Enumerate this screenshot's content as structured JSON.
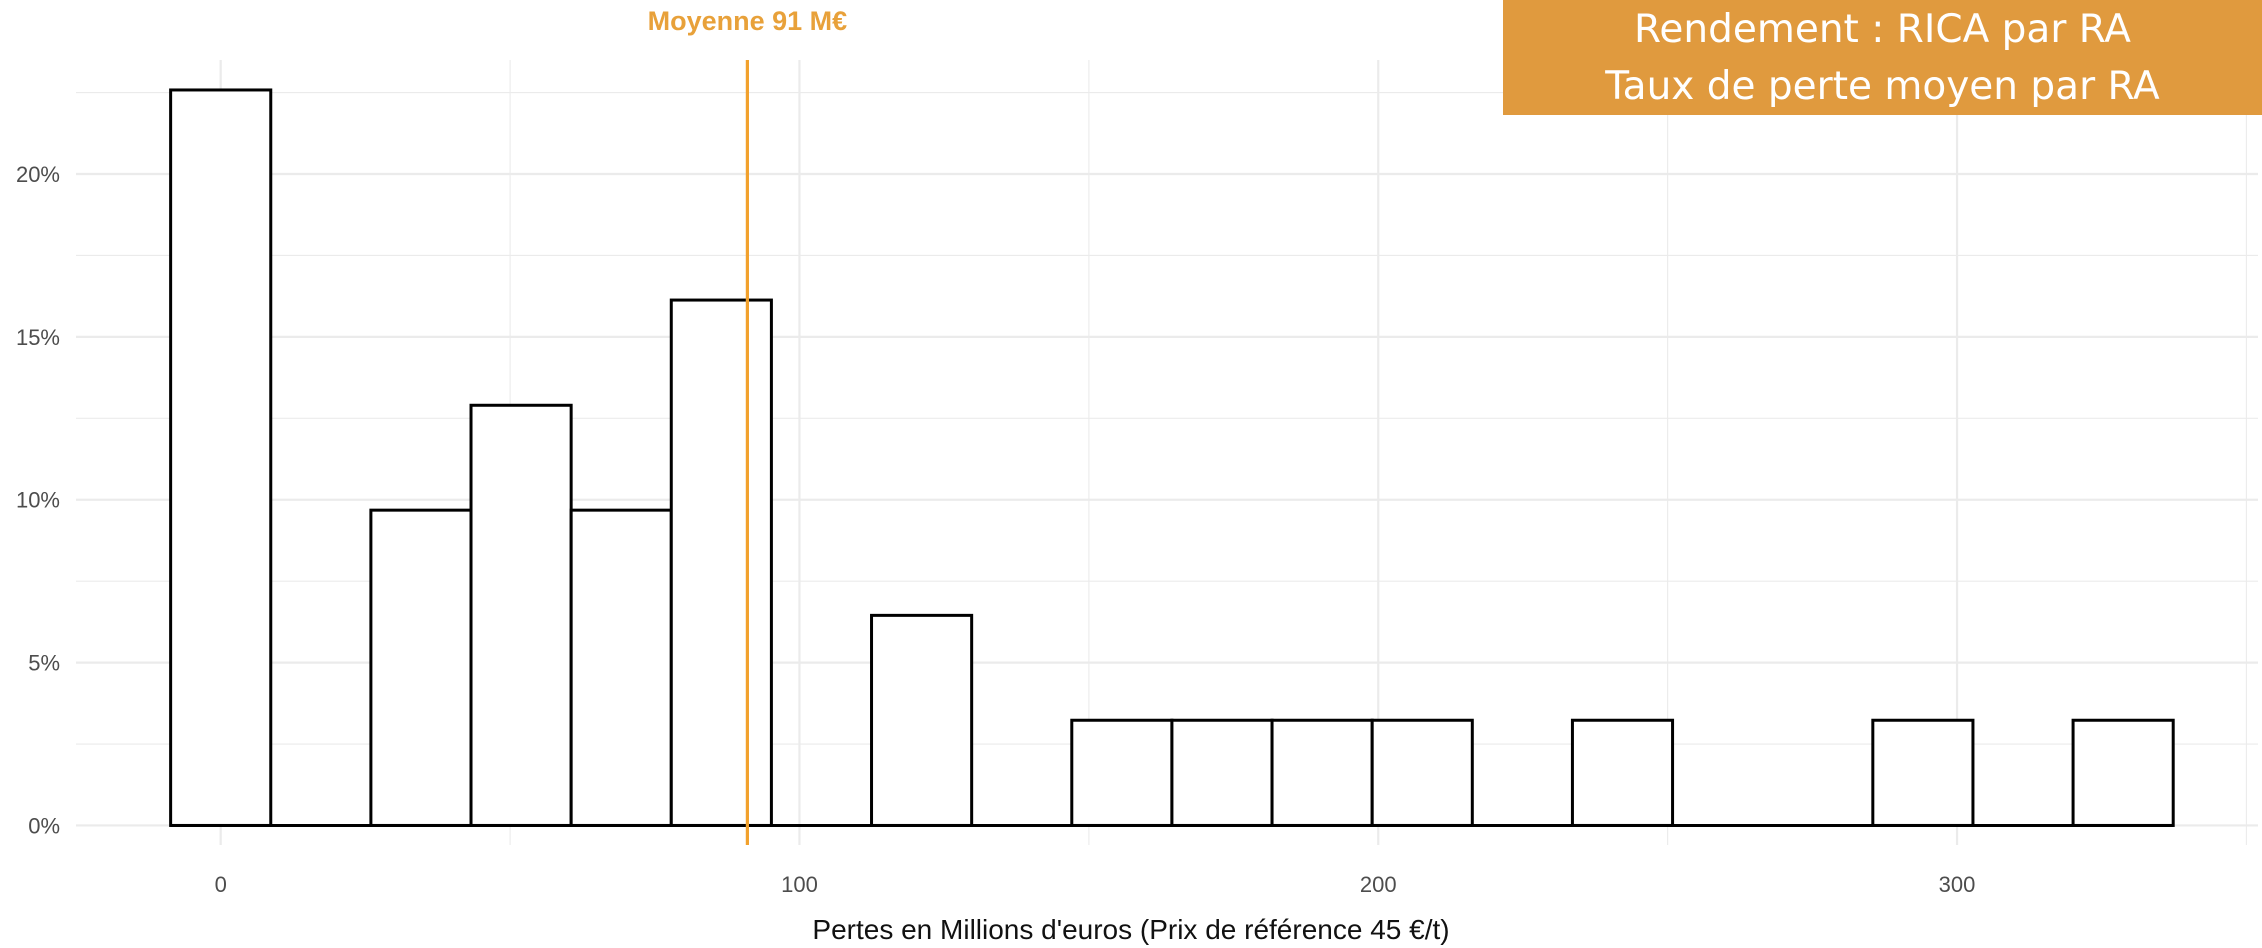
{
  "title_box": {
    "line1": "Rendement : RICA par RA",
    "line2": "Taux de perte moyen par RA"
  },
  "mean_annotation": "Moyenne 91 M€",
  "chart_data": {
    "type": "bar",
    "title": "Rendement : RICA par RA / Taux de perte moyen par RA",
    "xlabel": "Pertes en Millions d'euros (Prix de référence 45 €/t)",
    "ylabel": "",
    "bin_width": 17.3,
    "bins_center": [
      0,
      17.3,
      34.6,
      51.9,
      69.2,
      86.5,
      103.8,
      121.1,
      138.4,
      155.7,
      173.0,
      190.3,
      207.6,
      224.9,
      242.2,
      259.5,
      276.8,
      294.1,
      311.4,
      328.7
    ],
    "values": [
      22.58,
      0,
      9.68,
      12.9,
      9.68,
      16.13,
      0,
      6.45,
      0,
      3.23,
      3.23,
      3.23,
      3.23,
      0,
      3.23,
      0,
      0,
      3.23,
      0,
      3.23
    ],
    "xlim": [
      -25,
      352
    ],
    "ylim": [
      -0.6,
      23.5
    ],
    "x_ticks": [
      0,
      100,
      200,
      300
    ],
    "x_tick_labels": [
      "0",
      "100",
      "200",
      "300"
    ],
    "y_ticks": [
      0,
      5,
      10,
      15,
      20
    ],
    "y_tick_labels": [
      "0%",
      "5%",
      "10%",
      "15%",
      "20%"
    ],
    "mean_value": 91,
    "mean_color": "#F2A12C",
    "bar_fill": "#ffffff",
    "bar_stroke": "#000000",
    "grid": true,
    "grid_color": "#EBEBEB"
  }
}
